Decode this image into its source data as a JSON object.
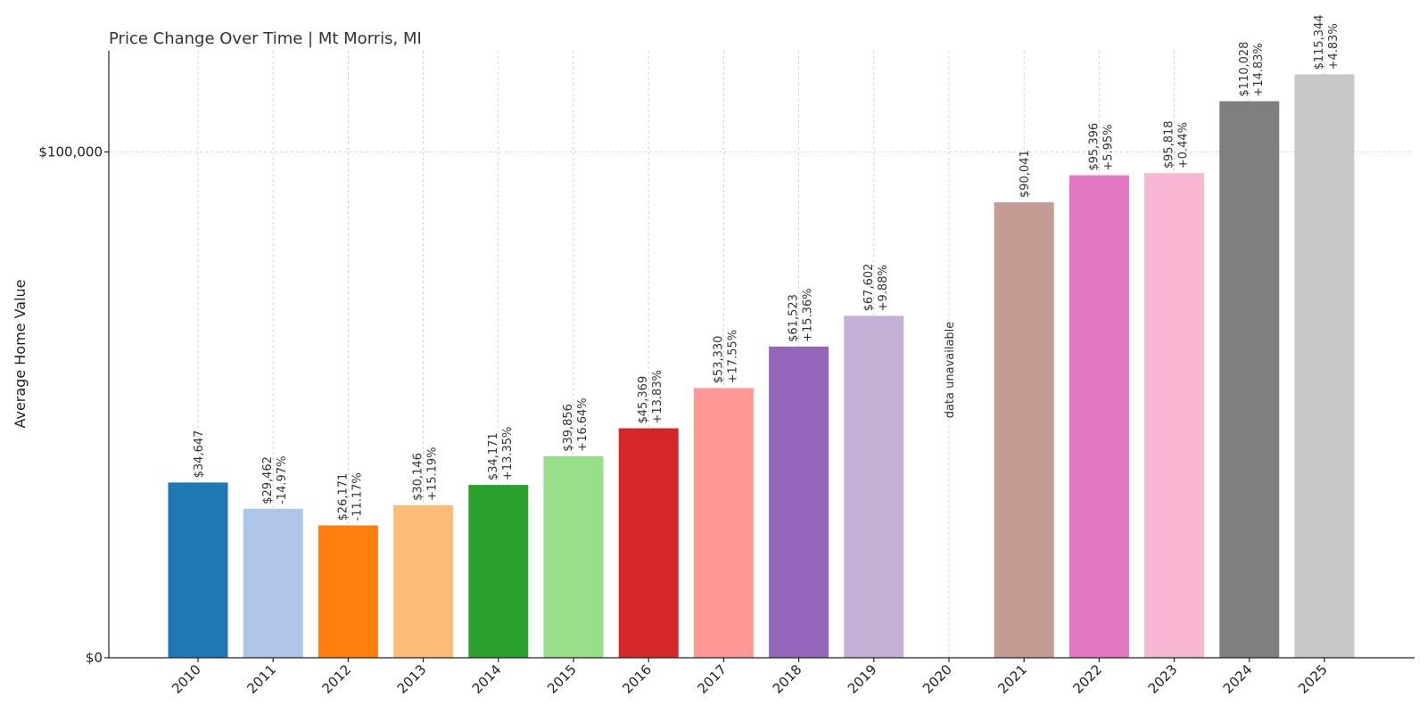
{
  "chart_data": {
    "type": "bar",
    "title": "Price Change Over Time | Mt Morris, MI",
    "xlabel": "",
    "ylabel": "Average Home Value",
    "ylim": [
      0,
      120000
    ],
    "y_ticks": [
      {
        "value": 0,
        "label": "$0"
      },
      {
        "value": 100000,
        "label": "$100,000"
      }
    ],
    "grid": true,
    "categories": [
      "2010",
      "2011",
      "2012",
      "2013",
      "2014",
      "2015",
      "2016",
      "2017",
      "2018",
      "2019",
      "2020",
      "2021",
      "2022",
      "2023",
      "2024",
      "2025"
    ],
    "values": [
      34647,
      29462,
      26171,
      30146,
      34171,
      39856,
      45369,
      53330,
      61523,
      67602,
      null,
      90041,
      95396,
      95818,
      110028,
      115344
    ],
    "value_labels": [
      "$34,647",
      "$29,462",
      "$26,171",
      "$30,146",
      "$34,171",
      "$39,856",
      "$45,369",
      "$53,330",
      "$61,523",
      "$67,602",
      "",
      "$90,041",
      "$95,396",
      "$95,818",
      "$110,028",
      "$115,344"
    ],
    "change_labels": [
      "",
      "-14.97%",
      "-11.17%",
      "+15.19%",
      "+13.35%",
      "+16.64%",
      "+13.83%",
      "+17.55%",
      "+15.36%",
      "+9.88%",
      "",
      "",
      "+5.95%",
      "+0.44%",
      "+14.83%",
      "+4.83%"
    ],
    "missing_label": "data unavailable",
    "colors": [
      "#1f77b4",
      "#aec7e8",
      "#ff7f0e",
      "#ffbb78",
      "#2ca02c",
      "#98df8a",
      "#d62728",
      "#ff9896",
      "#9467bd",
      "#c5b0d5",
      "#8c564b",
      "#c49c94",
      "#e377c2",
      "#f7b6d2",
      "#7f7f7f",
      "#c7c7c7"
    ]
  }
}
